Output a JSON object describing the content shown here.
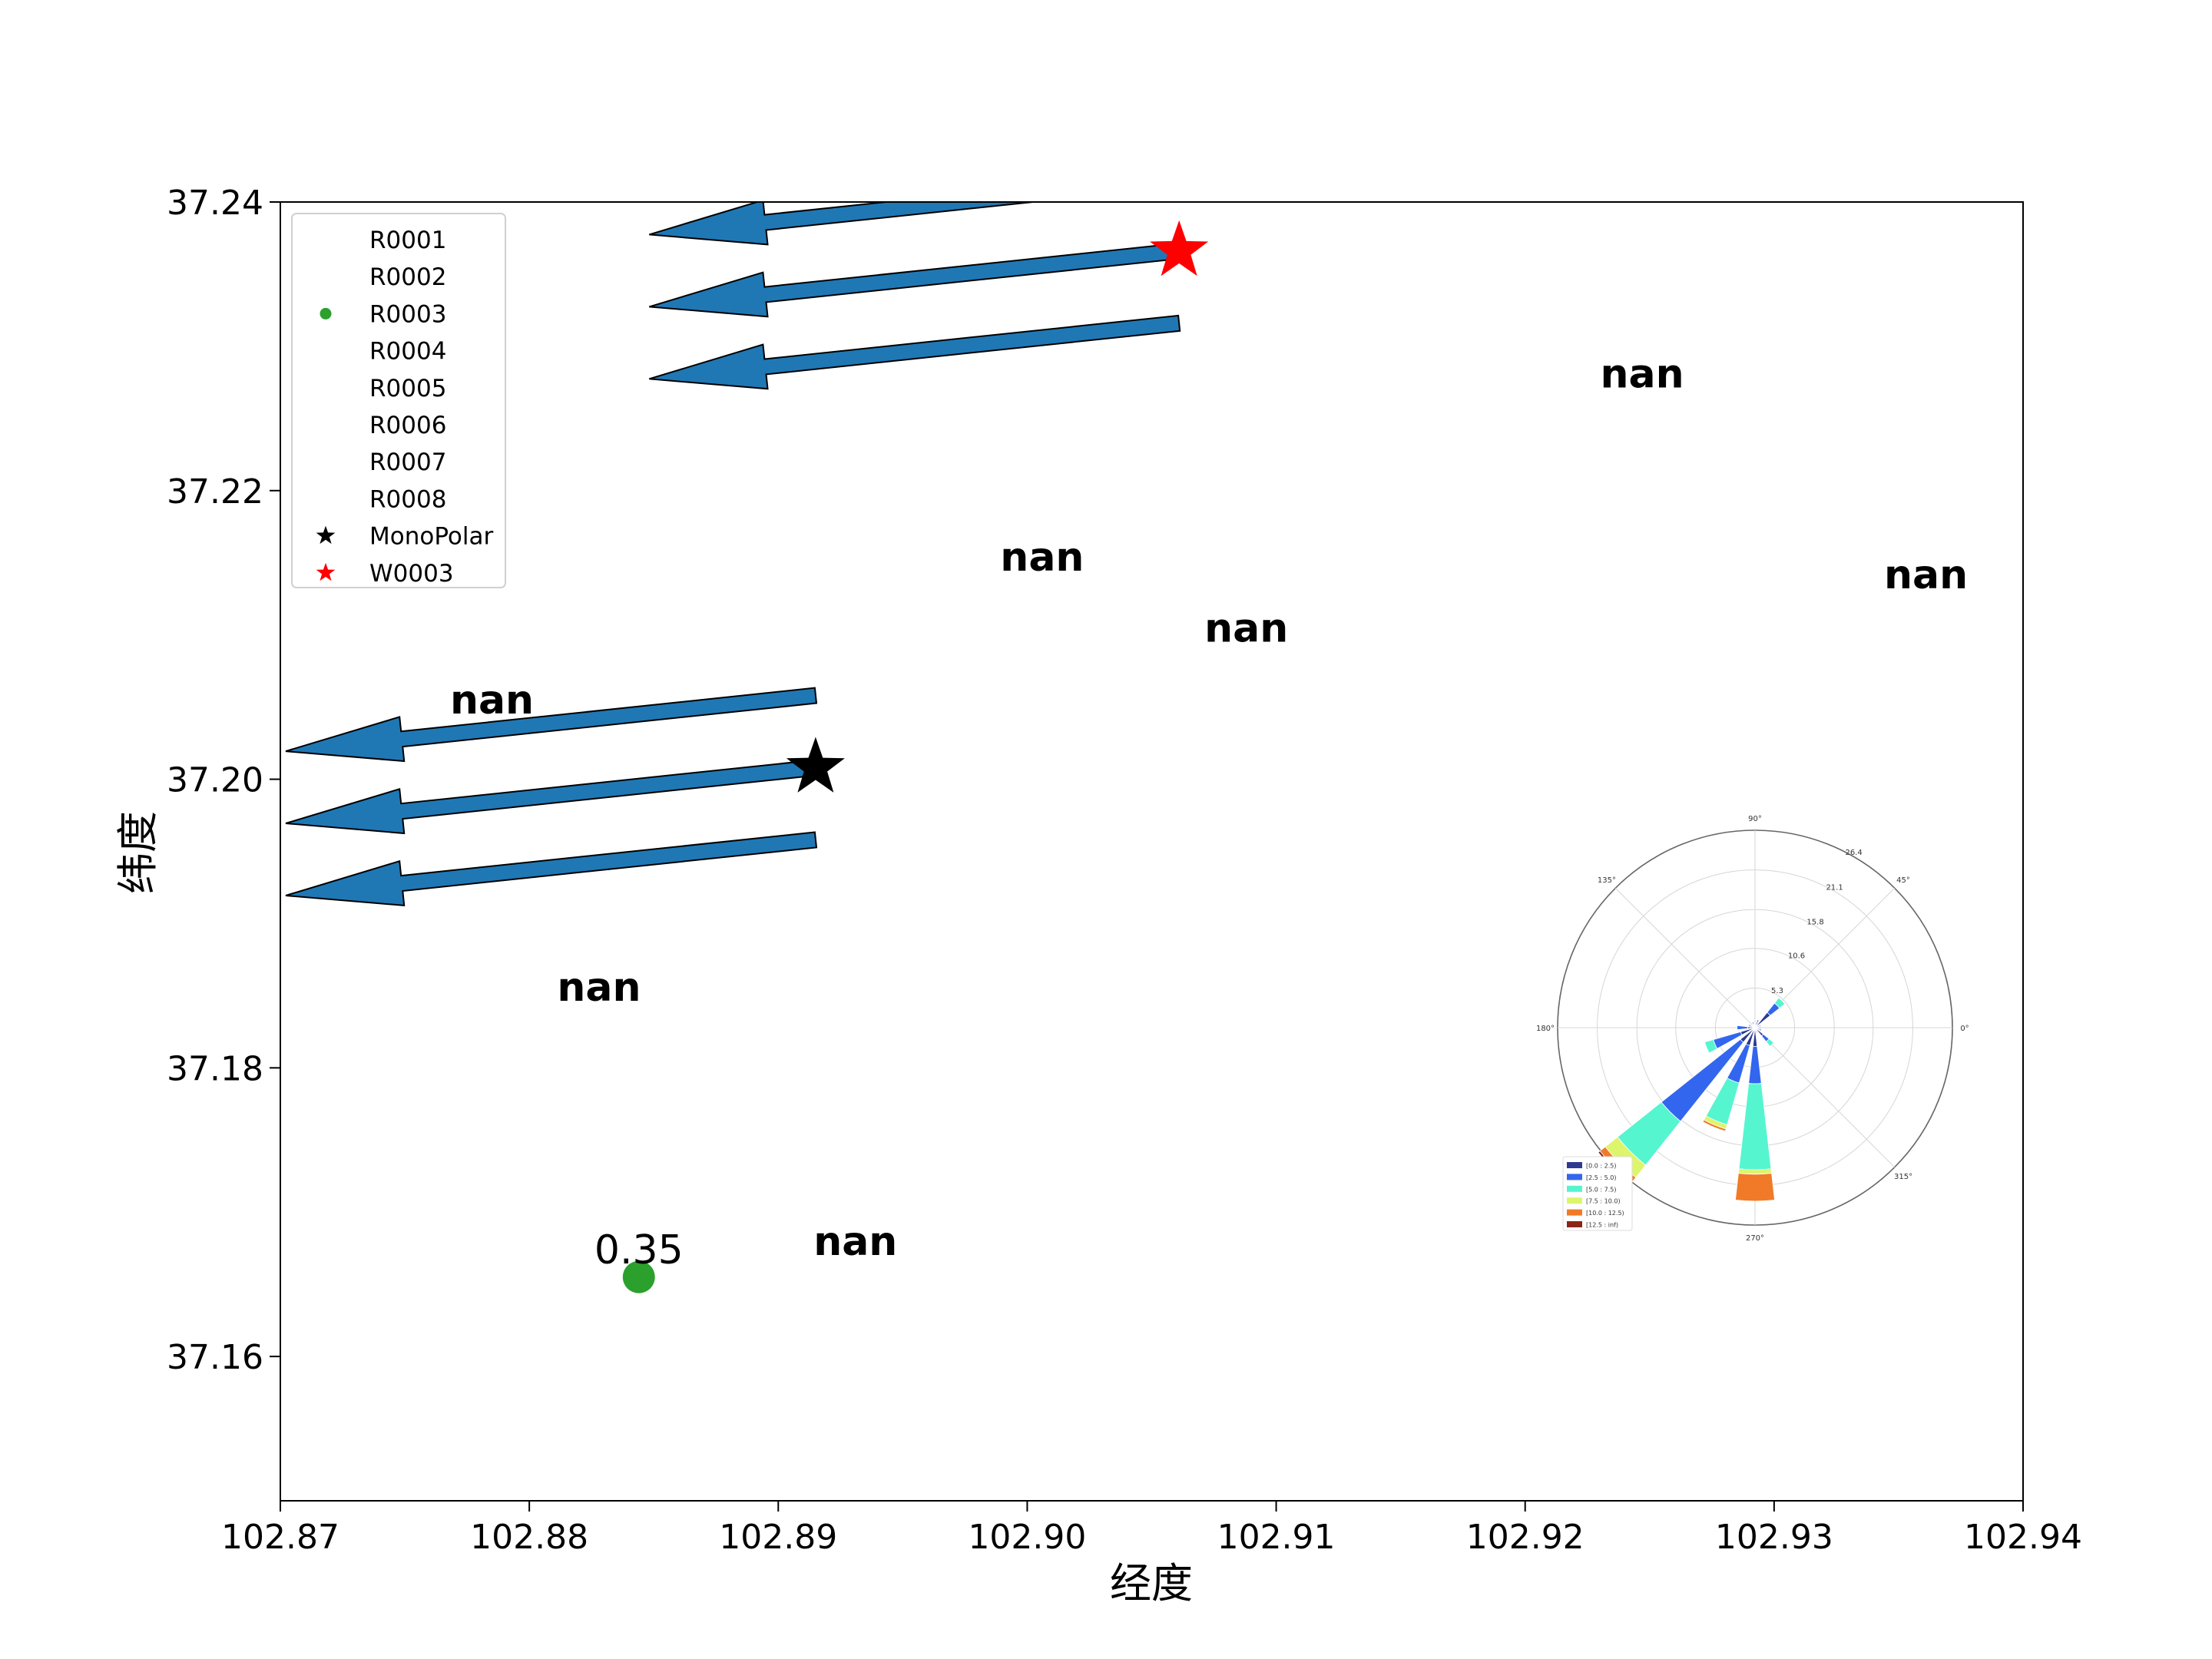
{
  "chart_data": {
    "type": "scatter",
    "xlabel": "经度",
    "ylabel": "纬度",
    "xlim": [
      102.87,
      102.94
    ],
    "ylim": [
      37.15,
      37.24
    ],
    "xticks": [
      "102.87",
      "102.88",
      "102.89",
      "102.90",
      "102.91",
      "102.92",
      "102.93",
      "102.94"
    ],
    "yticks": [
      "37.16",
      "37.18",
      "37.20",
      "37.22",
      "37.24"
    ],
    "legend": {
      "location": "upper-left",
      "entries": [
        {
          "label": "R0001",
          "marker": "none",
          "color": ""
        },
        {
          "label": "R0002",
          "marker": "none",
          "color": ""
        },
        {
          "label": "R0003",
          "marker": "circle",
          "color": "#2ca02c"
        },
        {
          "label": "R0004",
          "marker": "none",
          "color": ""
        },
        {
          "label": "R0005",
          "marker": "none",
          "color": ""
        },
        {
          "label": "R0006",
          "marker": "none",
          "color": ""
        },
        {
          "label": "R0007",
          "marker": "none",
          "color": ""
        },
        {
          "label": "R0008",
          "marker": "none",
          "color": ""
        },
        {
          "label": "MonoPolar",
          "marker": "star",
          "color": "#000000"
        },
        {
          "label": "W0003",
          "marker": "star",
          "color": "#ff0000"
        }
      ]
    },
    "nan_labels": [
      {
        "text": "nan",
        "x": 102.8785,
        "y": 37.2055
      },
      {
        "text": "nan",
        "x": 102.9006,
        "y": 37.2154
      },
      {
        "text": "nan",
        "x": 102.9088,
        "y": 37.2105
      },
      {
        "text": "nan",
        "x": 102.9247,
        "y": 37.2281
      },
      {
        "text": "nan",
        "x": 102.9361,
        "y": 37.2142
      },
      {
        "text": "nan",
        "x": 102.8828,
        "y": 37.1856
      },
      {
        "text": "nan",
        "x": 102.8931,
        "y": 37.168
      }
    ],
    "points": [
      {
        "series": "R0003",
        "x": 102.8844,
        "y": 37.1655,
        "label": "0.35",
        "color": "#2ca02c"
      }
    ],
    "stars": [
      {
        "series": "MonoPolar",
        "x": 102.8915,
        "y": 37.2008,
        "color": "#000000"
      },
      {
        "series": "W0003",
        "x": 102.9061,
        "y": 37.2366,
        "color": "#ff0000"
      }
    ],
    "arrows": [
      {
        "x": 102.9061,
        "y": 37.2416,
        "angle_deg": 186,
        "color": "#1f77b4"
      },
      {
        "x": 102.9061,
        "y": 37.2366,
        "angle_deg": 186,
        "color": "#1f77b4"
      },
      {
        "x": 102.9061,
        "y": 37.2316,
        "angle_deg": 186,
        "color": "#1f77b4"
      },
      {
        "x": 102.8915,
        "y": 37.2058,
        "angle_deg": 186,
        "color": "#1f77b4"
      },
      {
        "x": 102.8915,
        "y": 37.2008,
        "angle_deg": 186,
        "color": "#1f77b4"
      },
      {
        "x": 102.8915,
        "y": 37.1958,
        "angle_deg": 186,
        "color": "#1f77b4"
      }
    ],
    "windrose": {
      "type": "windrose",
      "angle_labels": [
        {
          "text": "90°",
          "deg": 90
        },
        {
          "text": "45°",
          "deg": 45
        },
        {
          "text": "0°",
          "deg": 0
        },
        {
          "text": "315°",
          "deg": 315
        },
        {
          "text": "270°",
          "deg": 270
        },
        {
          "text": "180°",
          "deg": 180
        },
        {
          "text": "135°",
          "deg": 135
        }
      ],
      "radial_ticks": [
        "5.3",
        "10.6",
        "15.8",
        "21.1",
        "26.4"
      ],
      "radial_values": [
        5.3,
        10.6,
        15.8,
        21.1,
        26.4
      ],
      "bins": [
        {
          "label": "[0.0 : 2.5)",
          "color": "#2c3a8f"
        },
        {
          "label": "[2.5 : 5.0)",
          "color": "#3366ee"
        },
        {
          "label": "[5.0 : 7.5)",
          "color": "#55f5d0"
        },
        {
          "label": "[7.5 : 10.0)",
          "color": "#ddf56a"
        },
        {
          "label": "[10.0 : 12.5)",
          "color": "#f07a28"
        },
        {
          "label": "[12.5 : inf)",
          "color": "#8b2418"
        }
      ],
      "sectors": [
        {
          "deg": 90,
          "values": [
            0.4,
            0.2,
            0,
            0,
            0,
            0
          ]
        },
        {
          "deg": 67.5,
          "values": [
            0.8,
            0.3,
            0,
            0,
            0,
            0
          ]
        },
        {
          "deg": 45,
          "values": [
            2.6,
            1.6,
            0.9,
            0,
            0,
            0
          ]
        },
        {
          "deg": 22.5,
          "values": [
            0.6,
            0.2,
            0,
            0,
            0,
            0
          ]
        },
        {
          "deg": 0,
          "values": [
            0.5,
            0.3,
            0,
            0,
            0,
            0
          ]
        },
        {
          "deg": 337.5,
          "values": [
            0.6,
            0.3,
            0,
            0,
            0,
            0
          ]
        },
        {
          "deg": 315,
          "values": [
            1.4,
            1.0,
            0.8,
            0,
            0,
            0
          ]
        },
        {
          "deg": 292.5,
          "values": [
            0.5,
            0.2,
            0,
            0,
            0,
            0
          ]
        },
        {
          "deg": 270,
          "values": [
            2.5,
            5.0,
            11.5,
            0.6,
            3.6,
            0
          ]
        },
        {
          "deg": 247.5,
          "values": [
            2.5,
            5.2,
            5.8,
            0.6,
            0.3,
            0
          ]
        },
        {
          "deg": 225,
          "values": [
            2.5,
            13.5,
            7.5,
            2.1,
            0.9,
            0.3
          ]
        },
        {
          "deg": 202.5,
          "values": [
            2.0,
            3.8,
            1.2,
            0,
            0,
            0
          ]
        },
        {
          "deg": 180,
          "values": [
            1.0,
            1.4,
            0,
            0,
            0,
            0
          ]
        },
        {
          "deg": 157.5,
          "values": [
            0.6,
            0.3,
            0,
            0,
            0,
            0
          ]
        },
        {
          "deg": 135,
          "values": [
            0.5,
            0.2,
            0,
            0,
            0,
            0
          ]
        },
        {
          "deg": 112.5,
          "values": [
            0.5,
            0.3,
            0,
            0,
            0,
            0
          ]
        }
      ]
    }
  }
}
